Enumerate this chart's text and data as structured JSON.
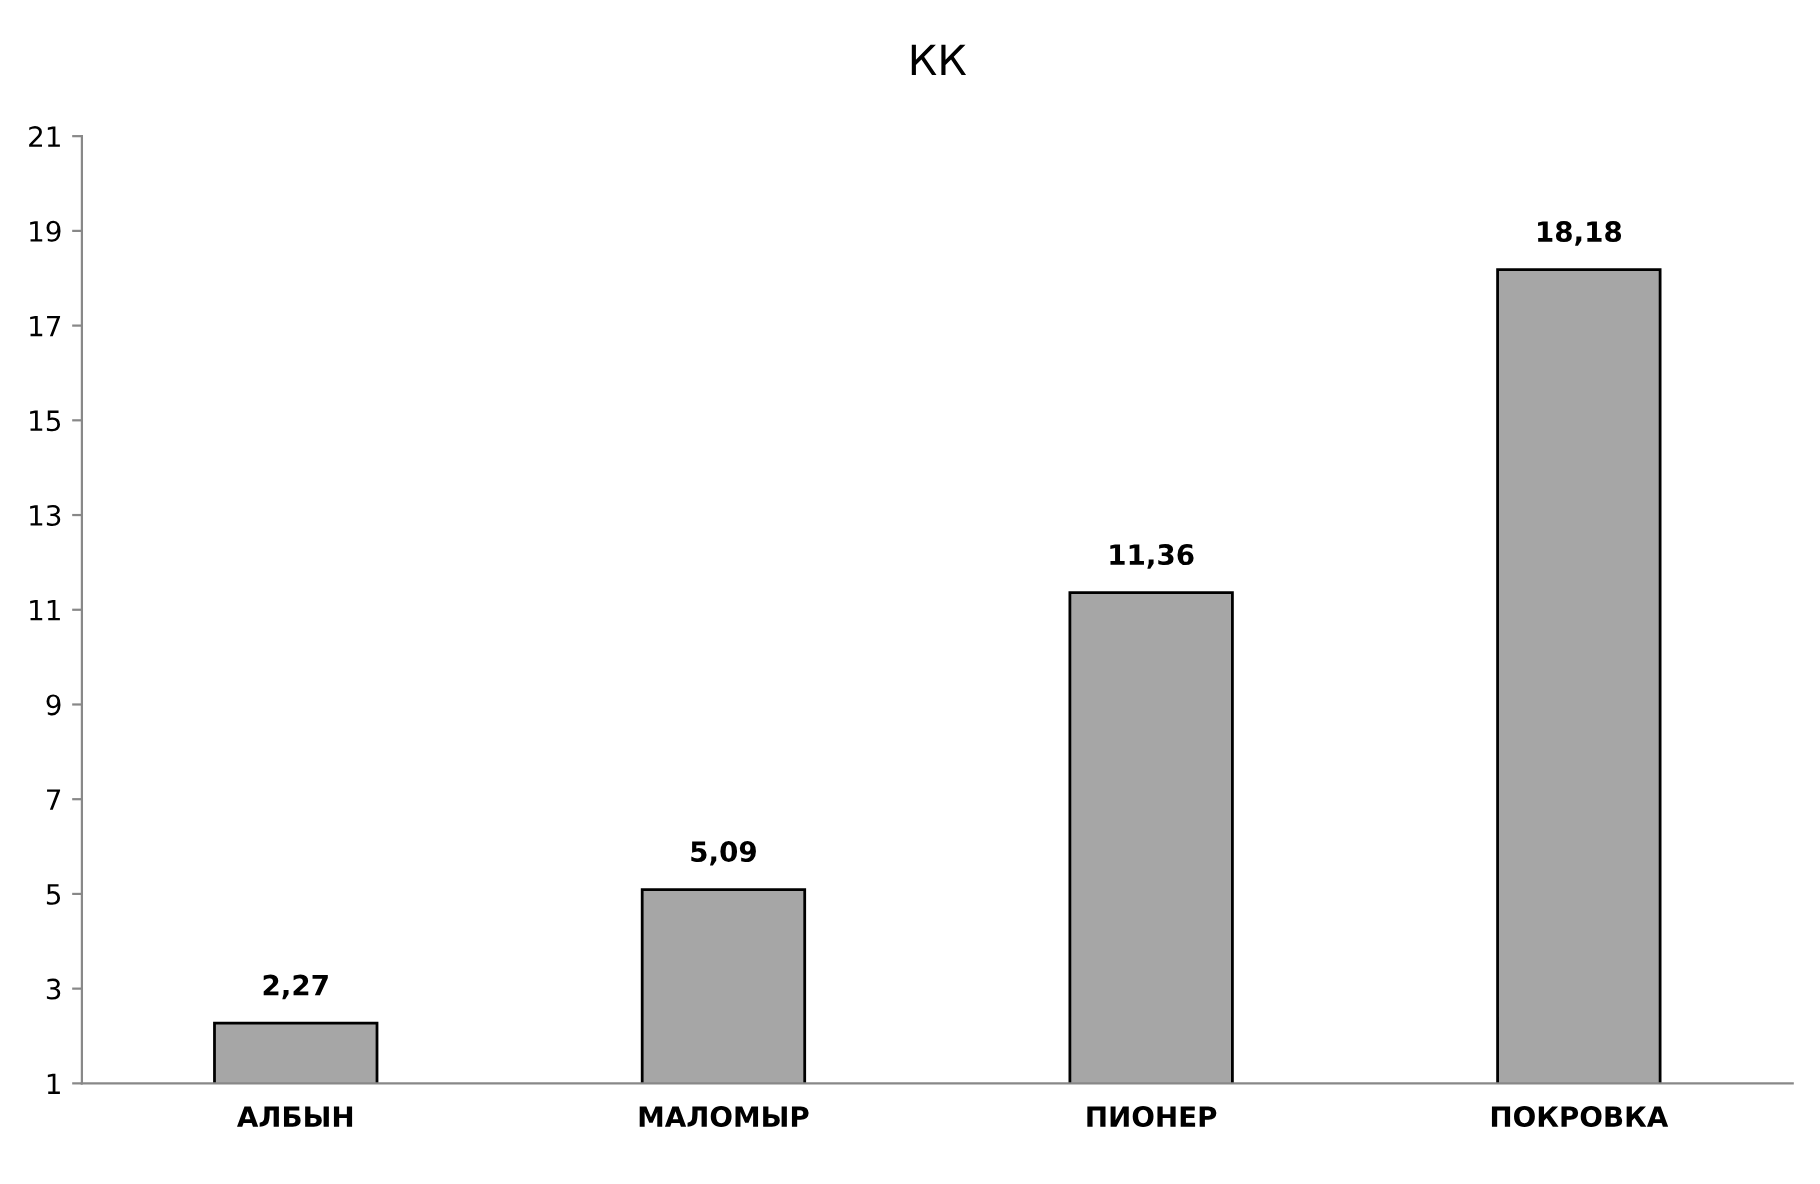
{
  "chart_data": {
    "type": "bar",
    "title": "КК",
    "categories": [
      "АЛБЫН",
      "МАЛОМЫР",
      "ПИОНЕР",
      "ПОКРОВКА"
    ],
    "values": [
      2.27,
      5.09,
      11.36,
      18.18
    ],
    "value_labels": [
      "2,27",
      "5,09",
      "11,36",
      "18,18"
    ],
    "color": "#a6a6a6",
    "ylim": [
      1,
      21
    ],
    "yticks": [
      1,
      3,
      5,
      7,
      9,
      11,
      13,
      15,
      17,
      19,
      21
    ],
    "grid": false,
    "legend": false
  }
}
